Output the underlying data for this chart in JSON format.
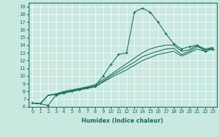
{
  "xlabel": "Humidex (Indice chaleur)",
  "ylabel": "",
  "background_color": "#c8e8e0",
  "line_color": "#1a6b5a",
  "grid_color": "#ffffff",
  "xlim": [
    -0.5,
    23.5
  ],
  "ylim": [
    6,
    19.5
  ],
  "xticks": [
    0,
    1,
    2,
    3,
    4,
    5,
    6,
    7,
    8,
    9,
    10,
    11,
    12,
    13,
    14,
    15,
    16,
    17,
    18,
    19,
    20,
    21,
    22,
    23
  ],
  "yticks": [
    6,
    7,
    8,
    9,
    10,
    11,
    12,
    13,
    14,
    15,
    16,
    17,
    18,
    19
  ],
  "series": [
    {
      "x": [
        0,
        1,
        2,
        3,
        4,
        5,
        6,
        7,
        8,
        9,
        10,
        11,
        12,
        13,
        14,
        15,
        16,
        17,
        18,
        19,
        20,
        21,
        22,
        23
      ],
      "y": [
        6.5,
        6.4,
        6.2,
        7.5,
        7.8,
        8.0,
        8.2,
        8.5,
        8.7,
        10.0,
        11.5,
        12.8,
        13.0,
        18.3,
        18.8,
        18.3,
        17.0,
        15.5,
        14.2,
        13.5,
        13.8,
        14.0,
        13.2,
        13.5
      ],
      "marker": "+"
    },
    {
      "x": [
        0,
        1,
        2,
        3,
        4,
        5,
        6,
        7,
        8,
        9,
        10,
        11,
        12,
        13,
        14,
        15,
        16,
        17,
        18,
        19,
        20,
        21,
        22,
        23
      ],
      "y": [
        6.5,
        6.4,
        7.5,
        7.6,
        7.8,
        8.0,
        8.2,
        8.4,
        8.6,
        9.2,
        9.8,
        10.3,
        10.8,
        11.4,
        12.0,
        12.4,
        12.8,
        13.0,
        13.2,
        12.6,
        13.0,
        13.5,
        13.2,
        13.5
      ],
      "marker": null
    },
    {
      "x": [
        0,
        1,
        2,
        3,
        4,
        5,
        6,
        7,
        8,
        9,
        10,
        11,
        12,
        13,
        14,
        15,
        16,
        17,
        18,
        19,
        20,
        21,
        22,
        23
      ],
      "y": [
        6.5,
        6.4,
        7.5,
        7.6,
        7.9,
        8.1,
        8.3,
        8.5,
        8.7,
        9.3,
        10.0,
        10.6,
        11.2,
        11.8,
        12.5,
        12.9,
        13.2,
        13.5,
        13.6,
        12.8,
        13.2,
        13.8,
        13.4,
        13.6
      ],
      "marker": null
    },
    {
      "x": [
        0,
        1,
        2,
        3,
        4,
        5,
        6,
        7,
        8,
        9,
        10,
        11,
        12,
        13,
        14,
        15,
        16,
        17,
        18,
        19,
        20,
        21,
        22,
        23
      ],
      "y": [
        6.5,
        6.4,
        7.5,
        7.7,
        8.0,
        8.2,
        8.4,
        8.6,
        8.9,
        9.5,
        10.2,
        10.9,
        11.6,
        12.3,
        13.0,
        13.5,
        13.8,
        14.0,
        14.0,
        13.2,
        13.4,
        14.0,
        13.5,
        13.7
      ],
      "marker": null
    }
  ]
}
